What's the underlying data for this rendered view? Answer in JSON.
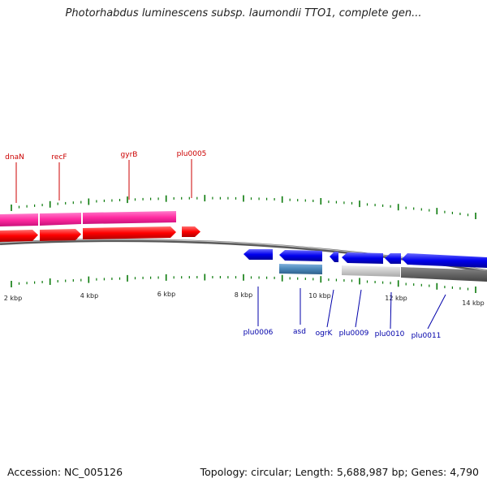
{
  "title": "Photorhabdus luminescens subsp. laumondii TTO1, complete gen...",
  "footer": {
    "accession": "Accession: NC_005126",
    "summary": "Topology: circular; Length: 5,688,987 bp; Genes: 4,790"
  },
  "colors": {
    "forward_gene": "#ff0000",
    "forward_cds": "#ff2aa0",
    "reverse_gene": "#0000ee",
    "reverse_cds_light": "#cccccc",
    "reverse_cds_dark": "#666666",
    "misc_feature": "#4a86b8",
    "forward_label": "#cc0000",
    "reverse_label": "#0000aa",
    "tick": "#0a7a0a"
  },
  "scale_labels": [
    "2 kbp",
    "4 kbp",
    "6 kbp",
    "8 kbp",
    "10 kbp",
    "12 kbp",
    "14 kbp"
  ],
  "forward_labels": [
    "dnaN",
    "recF",
    "gyrB",
    "plu0005"
  ],
  "reverse_labels": [
    "plu0006",
    "asd",
    "ogrK",
    "plu0009",
    "plu0010",
    "plu0011"
  ]
}
